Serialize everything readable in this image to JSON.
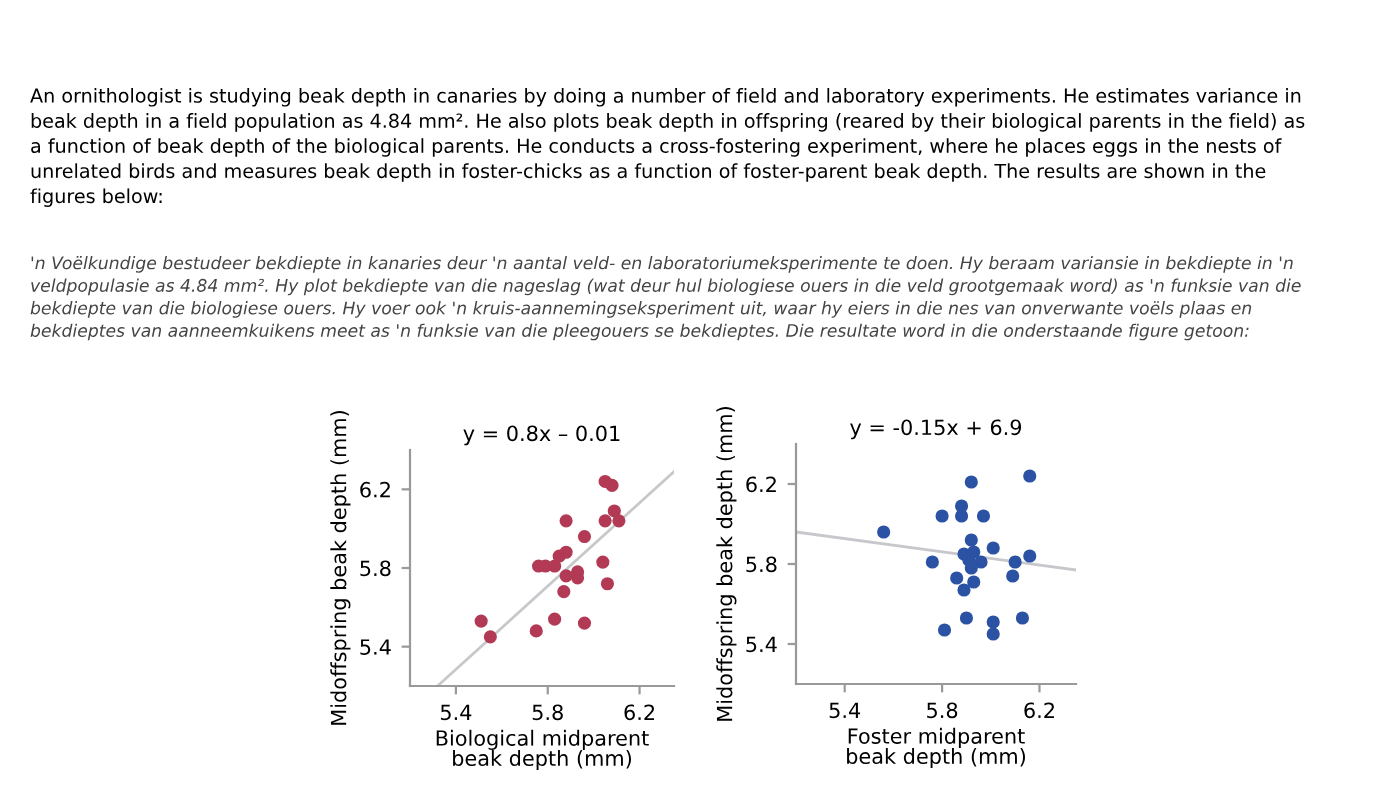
{
  "chart_data": [
    {
      "type": "scatter",
      "title": "An ornithologist is studying beak depth in canaries by doing a number of field and laboratory experiments. He estimates variance in\nbeak depth in a field population as 4.84 mm². He also plots beak depth in offspring (reared by their biological parents in the field) as\na function of beak depth of the biological parents. He conducts a cross-fostering experiment, where he places eggs in the nests of\nunrelated birds and measures beak depth in foster-chicks as a function of foster-parent beak depth. The results are shown in the\nfigures below:",
      "subtitle": "'n Voëlkundige bestudeer bekdiepte in kanaries deur 'n aantal veld- en laboratoriumeksperimente te doen. Hy beraam variansie in bekdiepte in 'n\nveldpopulasie as 4.84 mm². Hy plot bekdiepte van die nageslag (wat deur hul biologiese ouers in die veld grootgemaak word) as 'n funksie van die\nbekdiepte van die biologiese ouers. Hy voer ook 'n kruis-aannemingseksperiment uit, waar hy eiers in die nes van onverwante voëls plaas en\nbekdieptes van aanneemkuikens meet as 'n funksie van die pleegouers se bekdieptes. Die resultate word in die onderstaande figure getoon:",
      "xlabel": "Biological midparent\nbeak depth (mm)",
      "ylabel": "Midoffspring beak depth (mm)",
      "annotations": [
        "y = 0.8x – 0.01"
      ],
      "xlim": [
        5.2,
        6.35
      ],
      "ylim": [
        5.2,
        6.4
      ],
      "xticks": [
        5.4,
        5.8,
        6.2
      ],
      "yticks": [
        5.4,
        5.8,
        6.2
      ],
      "grid": false,
      "marker": "circle",
      "series": [
        {
          "color": "#b23a55",
          "x": [
            6.05,
            6.08,
            6.09,
            6.11,
            6.05,
            5.88,
            5.96,
            5.85,
            5.88,
            5.76,
            5.79,
            5.83,
            6.04,
            5.93,
            5.93,
            5.88,
            6.06,
            5.87,
            5.51,
            5.55,
            5.75,
            5.83,
            5.96
          ],
          "values": [
            6.24,
            6.22,
            6.09,
            6.04,
            6.04,
            6.04,
            5.96,
            5.86,
            5.88,
            5.81,
            5.81,
            5.81,
            5.83,
            5.78,
            5.75,
            5.76,
            5.72,
            5.68,
            5.53,
            5.45,
            5.48,
            5.54,
            5.52
          ]
        },
        {
          "type": "line",
          "marker": "none",
          "color": "#c8c8cc",
          "x": [
            5.32,
            6.35
          ],
          "values": [
            5.2,
            6.29
          ]
        }
      ]
    },
    {
      "type": "scatter",
      "xlabel": "Foster midparent\nbeak depth (mm)",
      "ylabel": "Midoffspring beak depth (mm)",
      "annotations": [
        "y = -0.15x + 6.9"
      ],
      "xlim": [
        5.2,
        6.35
      ],
      "ylim": [
        5.2,
        6.4
      ],
      "xticks": [
        5.4,
        5.8,
        6.2
      ],
      "yticks": [
        5.4,
        5.8,
        6.2
      ],
      "grid": false,
      "marker": "circle",
      "series": [
        {
          "color": "#2b52a3",
          "x": [
            5.56,
            5.76,
            5.8,
            5.88,
            5.88,
            5.92,
            5.97,
            6.16,
            5.92,
            6.01,
            5.89,
            5.93,
            5.96,
            5.91,
            5.92,
            6.1,
            6.16,
            6.09,
            5.86,
            5.93,
            5.89,
            5.9,
            6.01,
            6.01,
            5.81,
            6.13
          ],
          "values": [
            5.96,
            5.81,
            6.04,
            6.04,
            6.09,
            6.21,
            6.04,
            6.24,
            5.92,
            5.88,
            5.85,
            5.86,
            5.81,
            5.82,
            5.78,
            5.81,
            5.84,
            5.74,
            5.73,
            5.71,
            5.67,
            5.53,
            5.51,
            5.45,
            5.47,
            5.53
          ]
        },
        {
          "type": "line",
          "marker": "none",
          "color": "#c8c8cc",
          "x": [
            5.2,
            6.35
          ],
          "values": [
            5.96,
            5.77
          ]
        }
      ]
    }
  ]
}
